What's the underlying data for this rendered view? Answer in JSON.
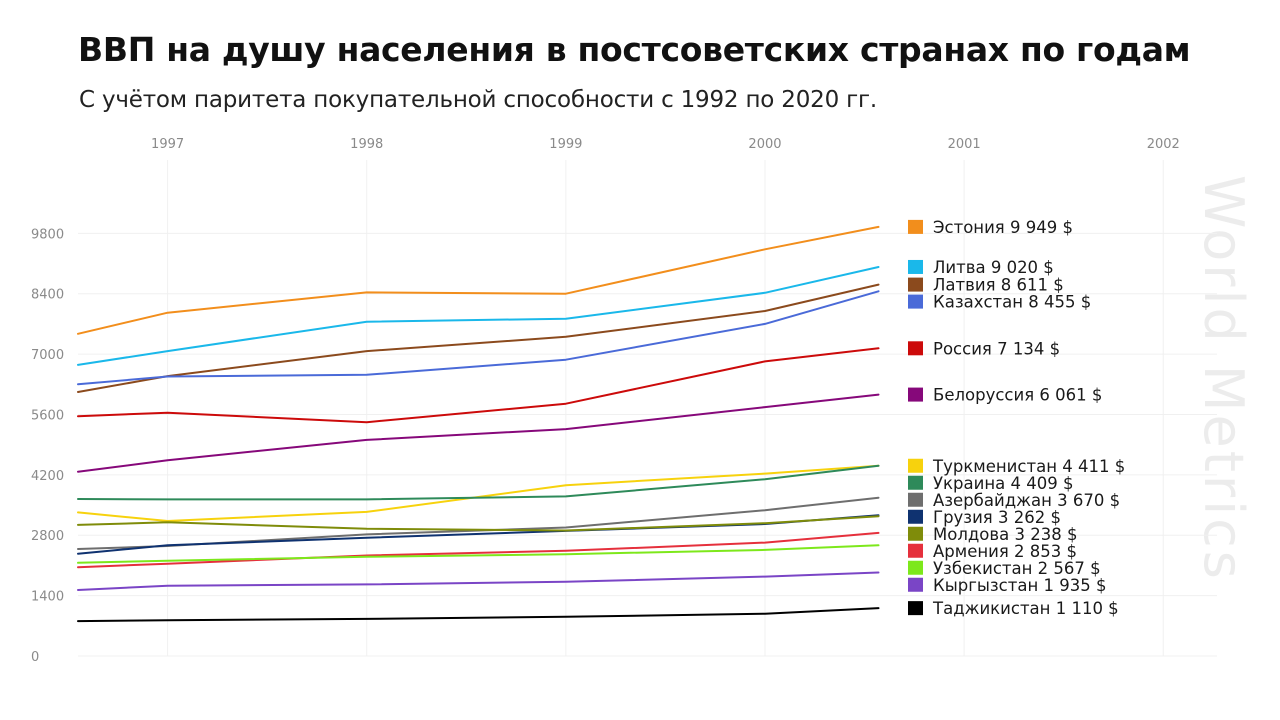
{
  "chart_data": {
    "type": "line",
    "title": "ВВП на душу населения в постсоветских странах по годам",
    "subtitle": "С учётом паритета покупательной способности с 1992 по 2020 гг.",
    "watermark": "World Metrics",
    "x_ticks": [
      "1997",
      "1998",
      "1999",
      "2000",
      "2001",
      "2002"
    ],
    "x_tick_values": [
      1997,
      1998,
      1999,
      2000,
      2001,
      2002
    ],
    "y_ticks": [
      "0",
      "1400",
      "2800",
      "4200",
      "5600",
      "7000",
      "8400",
      "9800"
    ],
    "y_tick_values": [
      0,
      1400,
      2800,
      4200,
      5600,
      7000,
      8400,
      9800
    ],
    "xlim": [
      1996.55,
      2002.27
    ],
    "ylim": [
      0,
      11500
    ],
    "x": [
      1996.55,
      1997,
      1998,
      1999,
      2000,
      2000.57
    ],
    "series": [
      {
        "name": "Эстония",
        "value_label": "9 949 $",
        "color": "#f28e1c",
        "values": [
          7470,
          7960,
          8430,
          8400,
          9430,
          9949
        ]
      },
      {
        "name": "Литва",
        "value_label": "9 020 $",
        "color": "#1ab8ea",
        "values": [
          6750,
          7070,
          7750,
          7820,
          8420,
          9020
        ]
      },
      {
        "name": "Латвия",
        "value_label": "8 611 $",
        "color": "#8b4a1d",
        "values": [
          6120,
          6490,
          7070,
          7400,
          8000,
          8611
        ]
      },
      {
        "name": "Казахстан",
        "value_label": "8 455 $",
        "color": "#4a6ad8",
        "values": [
          6300,
          6480,
          6520,
          6870,
          7700,
          8455
        ]
      },
      {
        "name": "Россия",
        "value_label": "7 134 $",
        "color": "#cc0a0a",
        "values": [
          5560,
          5640,
          5420,
          5850,
          6830,
          7134
        ]
      },
      {
        "name": "Белоруссия",
        "value_label": "6 061 $",
        "color": "#86087a",
        "values": [
          4270,
          4540,
          5010,
          5260,
          5770,
          6061
        ]
      },
      {
        "name": "Туркменистан",
        "value_label": "4 411 $",
        "color": "#f7d20d",
        "values": [
          3330,
          3130,
          3340,
          3960,
          4230,
          4411
        ]
      },
      {
        "name": "Украина",
        "value_label": "4 409 $",
        "color": "#2e8a5a",
        "values": [
          3640,
          3630,
          3630,
          3700,
          4100,
          4409
        ]
      },
      {
        "name": "Азербайджан",
        "value_label": "3 670 $",
        "color": "#6e6e6e",
        "values": [
          2480,
          2550,
          2820,
          2980,
          3380,
          3670
        ]
      },
      {
        "name": "Грузия",
        "value_label": "3 262 $",
        "color": "#0f3270",
        "values": [
          2370,
          2570,
          2740,
          2900,
          3060,
          3262
        ]
      },
      {
        "name": "Молдова",
        "value_label": "3 238 $",
        "color": "#7f8c0a",
        "values": [
          3040,
          3100,
          2950,
          2910,
          3080,
          3238
        ]
      },
      {
        "name": "Армения",
        "value_label": "2 853 $",
        "color": "#e5303c",
        "values": [
          2060,
          2140,
          2330,
          2440,
          2630,
          2853
        ]
      },
      {
        "name": "Узбекистан",
        "value_label": "2 567 $",
        "color": "#7de81b",
        "values": [
          2160,
          2210,
          2300,
          2360,
          2460,
          2567
        ]
      },
      {
        "name": "Кыргызстан",
        "value_label": "1 935 $",
        "color": "#7a45c6",
        "values": [
          1530,
          1630,
          1660,
          1720,
          1840,
          1935
        ]
      },
      {
        "name": "Таджикистан",
        "value_label": "1 110 $",
        "color": "#000000",
        "values": [
          810,
          830,
          860,
          910,
          980,
          1110
        ]
      }
    ]
  }
}
